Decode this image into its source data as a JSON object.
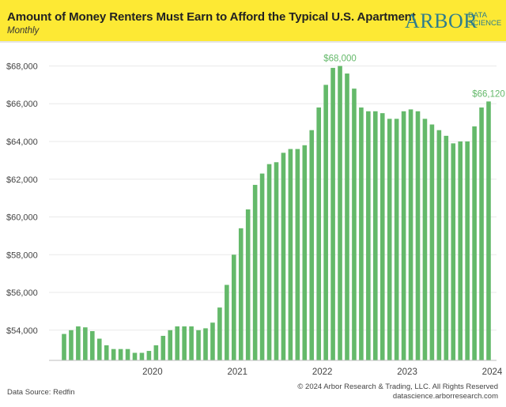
{
  "header": {
    "title": "Amount of Money Renters Must Earn to Afford the Typical U.S. Apartment",
    "subtitle": "Monthly",
    "logo_main": "ARBOR",
    "logo_sub_1": "DATA",
    "logo_sub_2": "SCIENCE",
    "background": "#fde934"
  },
  "footer": {
    "source": "Data Source: Redfin",
    "copyright": "© 2024 Arbor Research & Trading, LLC. All Rights Reserved",
    "website": "datascience.arborresearch.com"
  },
  "chart_data": {
    "type": "bar",
    "title": "Amount of Money Renters Must Earn to Afford the Typical U.S. Apartment",
    "subtitle": "Monthly",
    "xlabel": "",
    "ylabel": "",
    "x_start": "2019-06",
    "year_ticks": [
      "2020",
      "2021",
      "2022",
      "2023",
      "2024"
    ],
    "y_ticks": [
      54000,
      56000,
      58000,
      60000,
      62000,
      64000,
      66000,
      68000
    ],
    "ylim": [
      52400,
      68900
    ],
    "grid": true,
    "bar_color": "#64b96a",
    "values": [
      53800,
      54000,
      54200,
      54150,
      53950,
      53550,
      53200,
      53000,
      53000,
      53000,
      52800,
      52800,
      52900,
      53200,
      53700,
      54000,
      54200,
      54200,
      54200,
      54000,
      54100,
      54400,
      55200,
      56400,
      58000,
      59400,
      60400,
      61700,
      62300,
      62800,
      62900,
      63400,
      63600,
      63600,
      63800,
      64600,
      65800,
      67000,
      67900,
      68000,
      67600,
      66800,
      65800,
      65600,
      65600,
      65500,
      65200,
      65200,
      65600,
      65700,
      65600,
      65200,
      64900,
      64600,
      64300,
      63900,
      64000,
      64000,
      64800,
      65800,
      66120
    ],
    "annotations": [
      {
        "label": "$68,000",
        "index": 39
      },
      {
        "label": "$66,120",
        "index": 60
      }
    ]
  }
}
